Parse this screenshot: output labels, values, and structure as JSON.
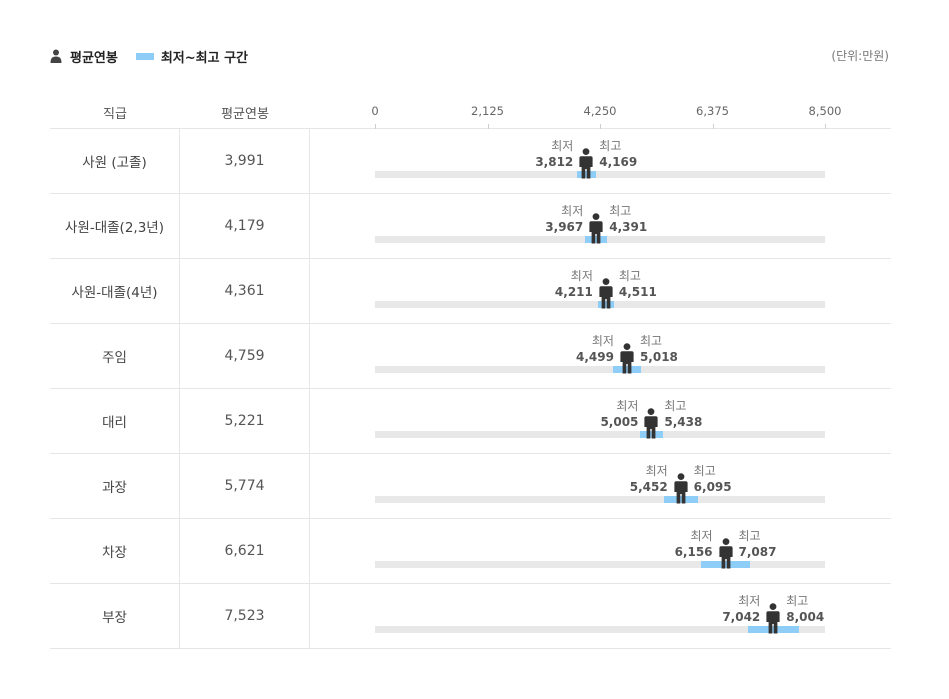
{
  "legend": {
    "avg_label": "평균연봉",
    "range_label": "최저~최고 구간",
    "avg_icon": "person-icon",
    "range_color": "#8ecdf7"
  },
  "unit_label": "(단위:만원)",
  "columns": {
    "position": "직급",
    "avg_salary": "평균연봉"
  },
  "min_label": "최저",
  "max_label": "최고",
  "chart_data": {
    "type": "range",
    "xlim": [
      0,
      8500
    ],
    "ticks": [
      "0",
      "2,125",
      "4,250",
      "6,375",
      "8,500"
    ],
    "tick_values": [
      0,
      2125,
      4250,
      6375,
      8500
    ],
    "rows": [
      {
        "position": "사원 (고졸)",
        "avg": 3991,
        "avg_text": "3,991",
        "min": 3812,
        "min_text": "3,812",
        "max": 4169,
        "max_text": "4,169"
      },
      {
        "position": "사원-대졸(2,3년)",
        "avg": 4179,
        "avg_text": "4,179",
        "min": 3967,
        "min_text": "3,967",
        "max": 4391,
        "max_text": "4,391"
      },
      {
        "position": "사원-대졸(4년)",
        "avg": 4361,
        "avg_text": "4,361",
        "min": 4211,
        "min_text": "4,211",
        "max": 4511,
        "max_text": "4,511"
      },
      {
        "position": "주임",
        "avg": 4759,
        "avg_text": "4,759",
        "min": 4499,
        "min_text": "4,499",
        "max": 5018,
        "max_text": "5,018"
      },
      {
        "position": "대리",
        "avg": 5221,
        "avg_text": "5,221",
        "min": 5005,
        "min_text": "5,005",
        "max": 5438,
        "max_text": "5,438"
      },
      {
        "position": "과장",
        "avg": 5774,
        "avg_text": "5,774",
        "min": 5452,
        "min_text": "5,452",
        "max": 6095,
        "max_text": "6,095"
      },
      {
        "position": "차장",
        "avg": 6621,
        "avg_text": "6,621",
        "min": 6156,
        "min_text": "6,156",
        "max": 7087,
        "max_text": "7,087"
      },
      {
        "position": "부장",
        "avg": 7523,
        "avg_text": "7,523",
        "min": 7042,
        "min_text": "7,042",
        "max": 8004,
        "max_text": "8,004"
      }
    ]
  }
}
